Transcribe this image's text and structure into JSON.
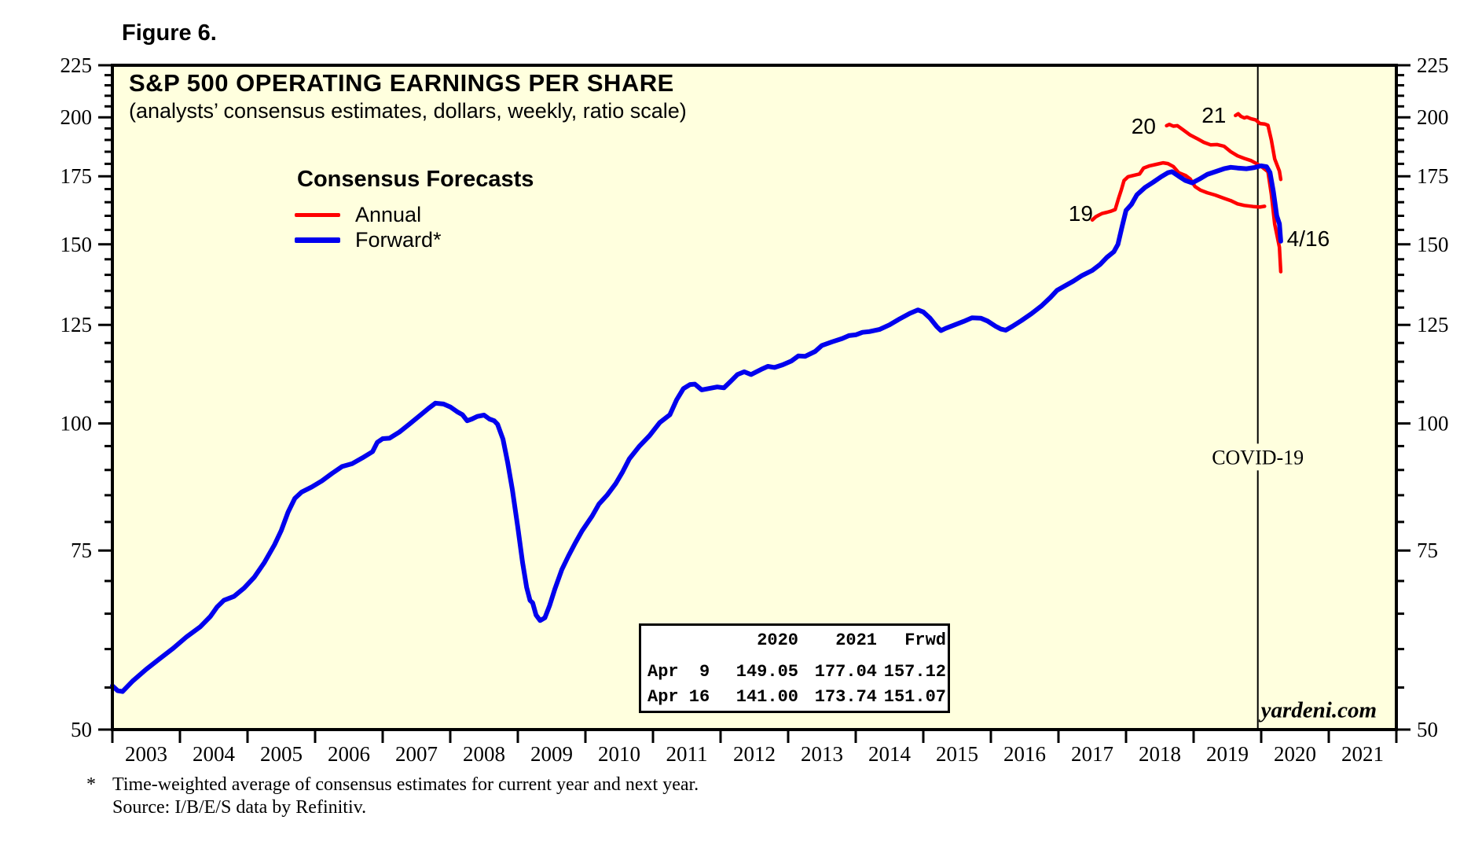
{
  "figure_label": "Figure 6.",
  "title": "S&P 500 OPERATING EARNINGS PER SHARE",
  "subtitle": "(analysts’ consensus estimates, dollars, weekly, ratio scale)",
  "legend": {
    "title": "Consensus Forecasts",
    "items": [
      {
        "label": "Annual",
        "color": "#ff0000"
      },
      {
        "label": "Forward*",
        "color": "#0000ee"
      }
    ]
  },
  "colors": {
    "plot_bg": "#ffffde",
    "annual": "#ff0000",
    "forward": "#0000ee",
    "axis": "#000000",
    "page_bg": "#ffffff",
    "table_bg": "#ffffff"
  },
  "inset_table": {
    "headers": [
      "",
      "2020",
      "2021",
      "Frwd"
    ],
    "rows": [
      [
        "Apr  9",
        "149.05",
        "177.04",
        "157.12"
      ],
      [
        "Apr 16",
        "141.00",
        "173.74",
        "151.07"
      ]
    ]
  },
  "footnote": {
    "asterisk": "*",
    "line1": "Time-weighted average of consensus estimates for current year and next year.",
    "line2": "Source: I/B/E/S data by Refinitiv."
  },
  "chart_data": {
    "type": "line",
    "title": "S&P 500 OPERATING EARNINGS PER SHARE",
    "x_axis": {
      "start_year": 2003,
      "end_year": 2022,
      "tick_labels": [
        "2003",
        "2004",
        "2005",
        "2006",
        "2007",
        "2008",
        "2009",
        "2010",
        "2011",
        "2012",
        "2013",
        "2014",
        "2015",
        "2016",
        "2017",
        "2018",
        "2019",
        "2020",
        "2021"
      ]
    },
    "y_axis": {
      "scale": "log",
      "min": 50,
      "max": 225,
      "major_ticks": [
        50,
        75,
        100,
        125,
        150,
        175,
        200,
        225
      ],
      "minor_tick_step": 5
    },
    "covid_line_year": 2019.95,
    "annotations": [
      {
        "id": "label-19",
        "text": "19",
        "color": "#ff0000",
        "x": 2017.33,
        "y": 158.2,
        "anchor": "middle",
        "font": "sans",
        "size": 28
      },
      {
        "id": "label-20",
        "text": "20",
        "color": "#ff0000",
        "x": 2018.26,
        "y": 192.7,
        "anchor": "middle",
        "font": "sans",
        "size": 28
      },
      {
        "id": "label-21",
        "text": "21",
        "color": "#ff0000",
        "x": 2019.3,
        "y": 197.6,
        "anchor": "middle",
        "font": "sans",
        "size": 28
      },
      {
        "id": "label-4-16",
        "text": "4/16",
        "color": "#0000ee",
        "x": 2020.38,
        "y": 149.4,
        "anchor": "start",
        "font": "sans",
        "size": 28
      },
      {
        "id": "covid-label",
        "text": "COVID-19",
        "color": "#000000",
        "x": 2019.95,
        "y": 91.2,
        "anchor": "middle",
        "font": "serif",
        "size": 26,
        "bg": true
      },
      {
        "id": "watermark",
        "text": "yardeni.com",
        "color": "#000000",
        "x": 2021.71,
        "y": 51.4,
        "anchor": "end",
        "font": "serif-bold-italic",
        "size": 29
      }
    ],
    "series": [
      {
        "name": "Annual consensus 2019",
        "color": "#ff0000",
        "width": 4.5,
        "points": [
          [
            2017.5,
            158.5
          ],
          [
            2017.55,
            159.6
          ],
          [
            2017.6,
            160.3
          ],
          [
            2017.65,
            160.9
          ],
          [
            2017.72,
            161.3
          ],
          [
            2017.78,
            161.7
          ],
          [
            2017.84,
            162.3
          ],
          [
            2017.89,
            166.5
          ],
          [
            2017.93,
            169.7
          ],
          [
            2017.97,
            173.3
          ],
          [
            2018.03,
            174.8
          ],
          [
            2018.12,
            175.4
          ],
          [
            2018.2,
            175.9
          ],
          [
            2018.26,
            178.3
          ],
          [
            2018.35,
            179.2
          ],
          [
            2018.45,
            179.8
          ],
          [
            2018.55,
            180.4
          ],
          [
            2018.62,
            180.1
          ],
          [
            2018.7,
            178.9
          ],
          [
            2018.78,
            176.4
          ],
          [
            2018.88,
            175.3
          ],
          [
            2018.95,
            173.9
          ],
          [
            2019.02,
            171.0
          ],
          [
            2019.1,
            169.6
          ],
          [
            2019.2,
            168.6
          ],
          [
            2019.32,
            167.7
          ],
          [
            2019.45,
            166.5
          ],
          [
            2019.55,
            165.6
          ],
          [
            2019.65,
            164.4
          ],
          [
            2019.75,
            163.8
          ],
          [
            2019.88,
            163.4
          ],
          [
            2019.98,
            163.2
          ],
          [
            2020.05,
            163.5
          ]
        ]
      },
      {
        "name": "Annual consensus 2020",
        "color": "#ff0000",
        "width": 4.5,
        "points": [
          [
            2018.6,
            196.2
          ],
          [
            2018.64,
            196.8
          ],
          [
            2018.7,
            196.0
          ],
          [
            2018.76,
            196.2
          ],
          [
            2018.84,
            194.5
          ],
          [
            2018.95,
            192.1
          ],
          [
            2019.05,
            190.6
          ],
          [
            2019.15,
            189.0
          ],
          [
            2019.25,
            187.9
          ],
          [
            2019.35,
            188.0
          ],
          [
            2019.45,
            187.3
          ],
          [
            2019.55,
            185.0
          ],
          [
            2019.65,
            183.3
          ],
          [
            2019.75,
            182.2
          ],
          [
            2019.85,
            181.3
          ],
          [
            2019.95,
            179.8
          ],
          [
            2020.03,
            178.3
          ],
          [
            2020.1,
            176.8
          ],
          [
            2020.15,
            168.0
          ],
          [
            2020.2,
            157.0
          ],
          [
            2020.27,
            149.05
          ],
          [
            2020.29,
            141.0
          ]
        ]
      },
      {
        "name": "Annual consensus 2021",
        "color": "#ff0000",
        "width": 4.5,
        "points": [
          [
            2019.62,
            200.8
          ],
          [
            2019.66,
            201.6
          ],
          [
            2019.7,
            200.4
          ],
          [
            2019.75,
            199.7
          ],
          [
            2019.79,
            200.1
          ],
          [
            2019.85,
            199.3
          ],
          [
            2019.92,
            198.8
          ],
          [
            2019.98,
            197.2
          ],
          [
            2020.05,
            197.0
          ],
          [
            2020.1,
            196.4
          ],
          [
            2020.15,
            190.0
          ],
          [
            2020.2,
            182.0
          ],
          [
            2020.27,
            177.04
          ],
          [
            2020.29,
            173.74
          ]
        ]
      },
      {
        "name": "Forward earnings",
        "color": "#0000ee",
        "width": 6,
        "points": [
          [
            2003.0,
            55.2
          ],
          [
            2003.08,
            54.6
          ],
          [
            2003.15,
            54.5
          ],
          [
            2003.3,
            55.8
          ],
          [
            2003.5,
            57.3
          ],
          [
            2003.7,
            58.7
          ],
          [
            2003.9,
            60.1
          ],
          [
            2004.1,
            61.7
          ],
          [
            2004.3,
            63.1
          ],
          [
            2004.45,
            64.6
          ],
          [
            2004.55,
            66.0
          ],
          [
            2004.65,
            67.0
          ],
          [
            2004.8,
            67.6
          ],
          [
            2004.95,
            68.9
          ],
          [
            2005.1,
            70.6
          ],
          [
            2005.25,
            73.0
          ],
          [
            2005.4,
            76.0
          ],
          [
            2005.5,
            78.5
          ],
          [
            2005.6,
            81.8
          ],
          [
            2005.7,
            84.4
          ],
          [
            2005.8,
            85.6
          ],
          [
            2005.95,
            86.6
          ],
          [
            2006.1,
            87.8
          ],
          [
            2006.25,
            89.3
          ],
          [
            2006.4,
            90.7
          ],
          [
            2006.55,
            91.3
          ],
          [
            2006.7,
            92.5
          ],
          [
            2006.85,
            93.8
          ],
          [
            2006.92,
            95.8
          ],
          [
            2007.0,
            96.6
          ],
          [
            2007.1,
            96.7
          ],
          [
            2007.25,
            98.1
          ],
          [
            2007.4,
            99.9
          ],
          [
            2007.55,
            101.8
          ],
          [
            2007.68,
            103.5
          ],
          [
            2007.78,
            104.7
          ],
          [
            2007.9,
            104.5
          ],
          [
            2008.0,
            103.8
          ],
          [
            2008.1,
            102.7
          ],
          [
            2008.18,
            102.0
          ],
          [
            2008.25,
            100.6
          ],
          [
            2008.32,
            101.0
          ],
          [
            2008.4,
            101.6
          ],
          [
            2008.5,
            101.9
          ],
          [
            2008.58,
            101.0
          ],
          [
            2008.65,
            100.6
          ],
          [
            2008.7,
            99.8
          ],
          [
            2008.78,
            96.5
          ],
          [
            2008.85,
            91.5
          ],
          [
            2008.92,
            86.0
          ],
          [
            2009.0,
            79.0
          ],
          [
            2009.07,
            73.0
          ],
          [
            2009.13,
            69.0
          ],
          [
            2009.18,
            67.0
          ],
          [
            2009.22,
            66.6
          ],
          [
            2009.27,
            64.8
          ],
          [
            2009.33,
            64.0
          ],
          [
            2009.4,
            64.4
          ],
          [
            2009.47,
            66.2
          ],
          [
            2009.55,
            68.8
          ],
          [
            2009.65,
            71.8
          ],
          [
            2009.75,
            74.1
          ],
          [
            2009.85,
            76.3
          ],
          [
            2009.95,
            78.4
          ],
          [
            2010.1,
            81.1
          ],
          [
            2010.2,
            83.3
          ],
          [
            2010.32,
            85.0
          ],
          [
            2010.45,
            87.3
          ],
          [
            2010.55,
            89.6
          ],
          [
            2010.65,
            92.3
          ],
          [
            2010.8,
            95.0
          ],
          [
            2010.95,
            97.3
          ],
          [
            2011.1,
            100.2
          ],
          [
            2011.25,
            102.0
          ],
          [
            2011.35,
            105.5
          ],
          [
            2011.45,
            108.2
          ],
          [
            2011.55,
            109.2
          ],
          [
            2011.62,
            109.3
          ],
          [
            2011.72,
            107.9
          ],
          [
            2011.82,
            108.2
          ],
          [
            2011.95,
            108.6
          ],
          [
            2012.05,
            108.4
          ],
          [
            2012.15,
            110.0
          ],
          [
            2012.25,
            111.7
          ],
          [
            2012.35,
            112.4
          ],
          [
            2012.45,
            111.7
          ],
          [
            2012.6,
            113.0
          ],
          [
            2012.7,
            113.8
          ],
          [
            2012.8,
            113.5
          ],
          [
            2012.92,
            114.2
          ],
          [
            2013.05,
            115.2
          ],
          [
            2013.15,
            116.5
          ],
          [
            2013.25,
            116.4
          ],
          [
            2013.4,
            117.7
          ],
          [
            2013.5,
            119.3
          ],
          [
            2013.65,
            120.3
          ],
          [
            2013.8,
            121.2
          ],
          [
            2013.9,
            122.0
          ],
          [
            2014.0,
            122.2
          ],
          [
            2014.1,
            122.9
          ],
          [
            2014.2,
            123.1
          ],
          [
            2014.35,
            123.7
          ],
          [
            2014.5,
            125.0
          ],
          [
            2014.65,
            126.7
          ],
          [
            2014.8,
            128.3
          ],
          [
            2014.92,
            129.3
          ],
          [
            2015.0,
            128.7
          ],
          [
            2015.1,
            126.9
          ],
          [
            2015.2,
            124.5
          ],
          [
            2015.26,
            123.4
          ],
          [
            2015.33,
            124.0
          ],
          [
            2015.45,
            124.9
          ],
          [
            2015.6,
            126.0
          ],
          [
            2015.72,
            127.0
          ],
          [
            2015.85,
            126.9
          ],
          [
            2015.95,
            126.1
          ],
          [
            2016.07,
            124.6
          ],
          [
            2016.15,
            123.8
          ],
          [
            2016.22,
            123.5
          ],
          [
            2016.32,
            124.6
          ],
          [
            2016.45,
            126.2
          ],
          [
            2016.6,
            128.2
          ],
          [
            2016.75,
            130.5
          ],
          [
            2016.88,
            133.0
          ],
          [
            2016.98,
            135.2
          ],
          [
            2017.1,
            136.6
          ],
          [
            2017.22,
            138.0
          ],
          [
            2017.35,
            139.8
          ],
          [
            2017.5,
            141.4
          ],
          [
            2017.62,
            143.4
          ],
          [
            2017.72,
            145.7
          ],
          [
            2017.82,
            147.5
          ],
          [
            2017.88,
            150.0
          ],
          [
            2017.94,
            156.0
          ],
          [
            2018.0,
            162.0
          ],
          [
            2018.08,
            164.2
          ],
          [
            2018.16,
            167.8
          ],
          [
            2018.28,
            170.6
          ],
          [
            2018.4,
            172.6
          ],
          [
            2018.52,
            174.8
          ],
          [
            2018.62,
            176.4
          ],
          [
            2018.68,
            176.8
          ],
          [
            2018.78,
            175.0
          ],
          [
            2018.88,
            173.3
          ],
          [
            2018.98,
            172.4
          ],
          [
            2019.1,
            174.1
          ],
          [
            2019.2,
            175.7
          ],
          [
            2019.33,
            176.9
          ],
          [
            2019.45,
            178.0
          ],
          [
            2019.55,
            178.6
          ],
          [
            2019.65,
            178.3
          ],
          [
            2019.78,
            178.0
          ],
          [
            2019.9,
            178.5
          ],
          [
            2020.0,
            179.2
          ],
          [
            2020.08,
            178.8
          ],
          [
            2020.13,
            176.5
          ],
          [
            2020.18,
            169.0
          ],
          [
            2020.23,
            160.0
          ],
          [
            2020.27,
            157.12
          ],
          [
            2020.29,
            151.07
          ]
        ]
      }
    ]
  }
}
